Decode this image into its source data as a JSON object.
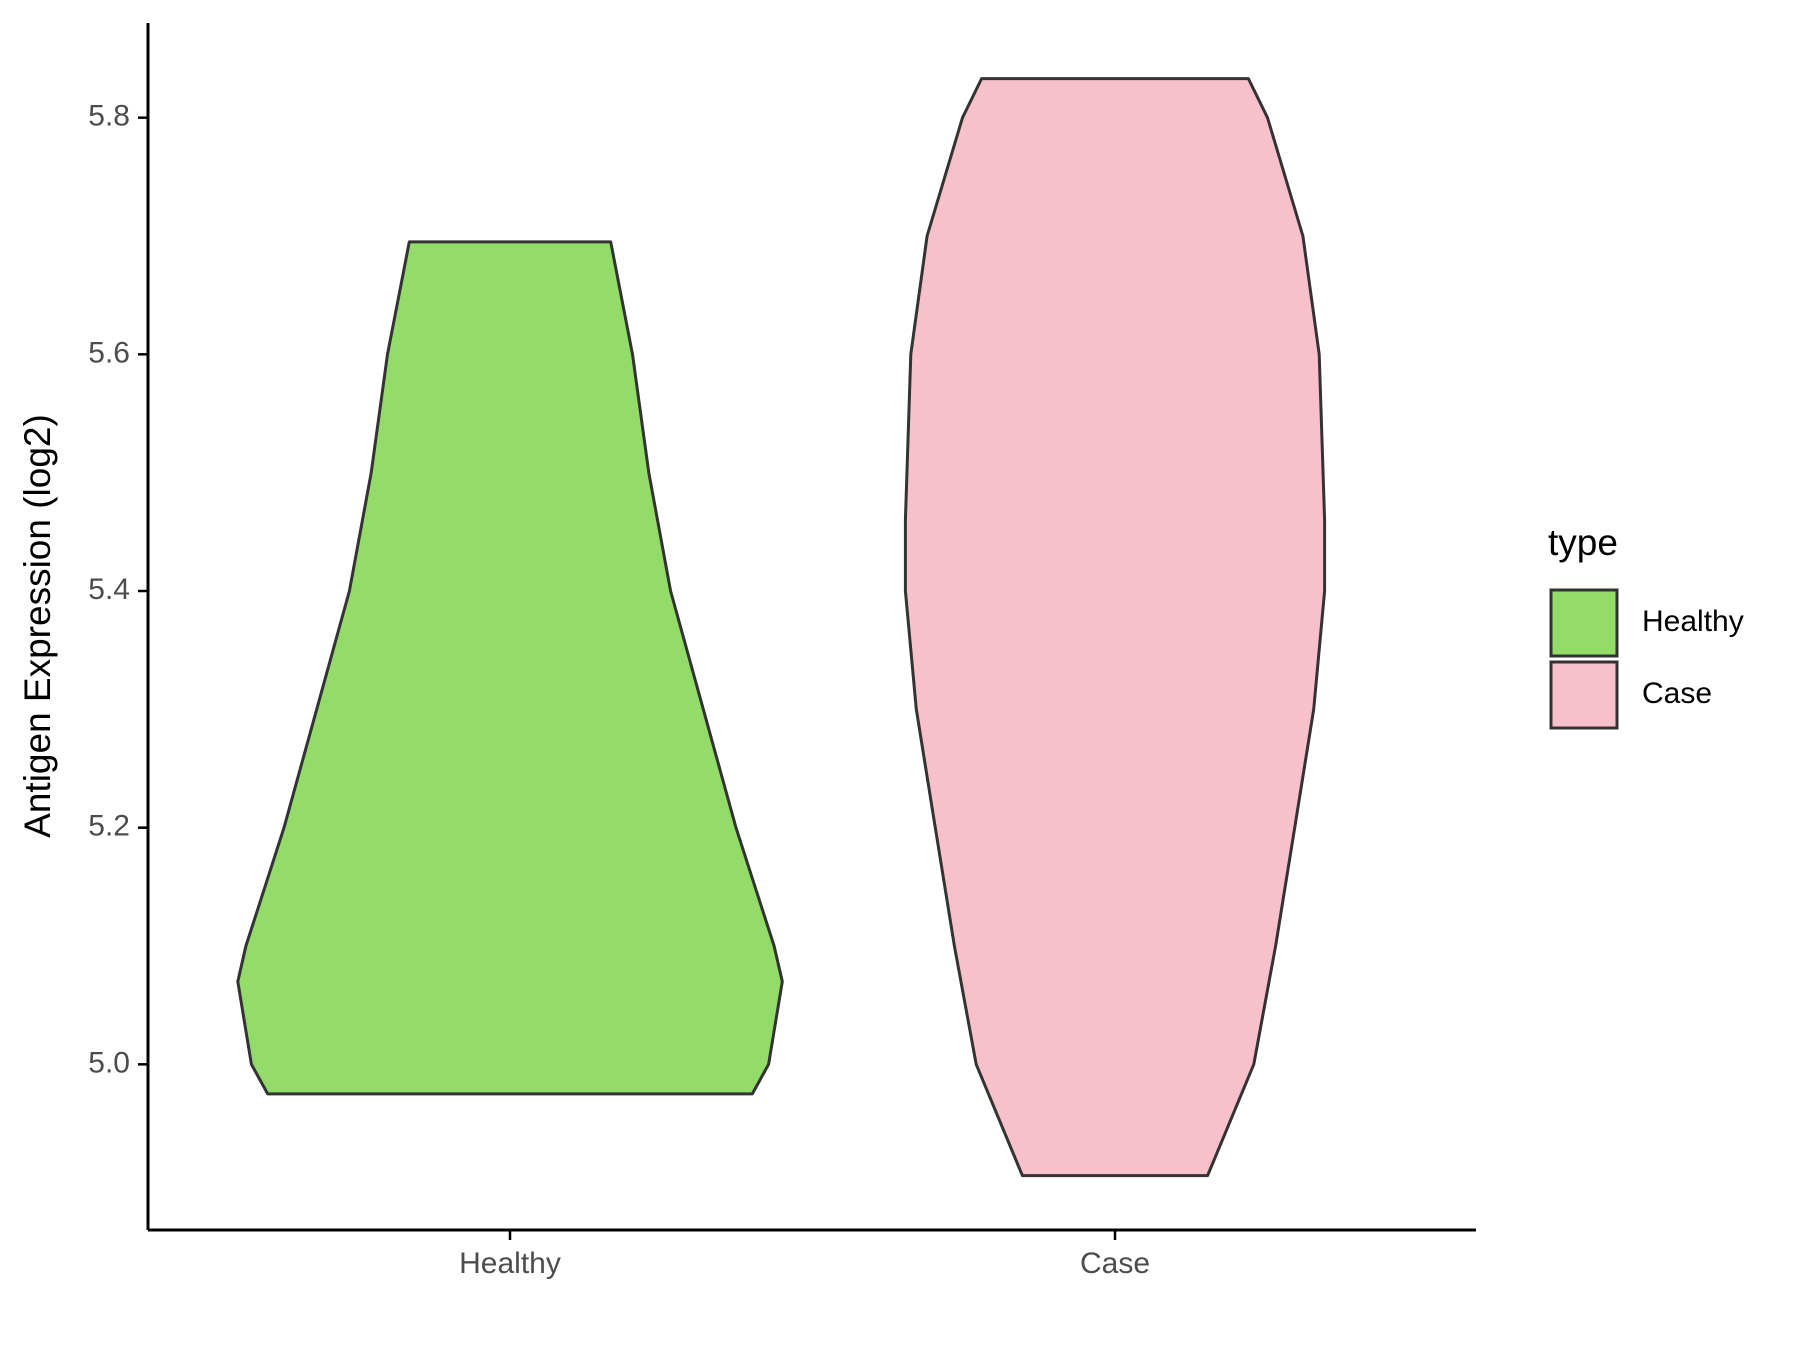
{
  "chart_data": {
    "type": "violin",
    "y_label": "Antigen Expression (log2)",
    "categories": [
      "Healthy",
      "Case"
    ],
    "legend_title": "type",
    "legend": "right",
    "series": [
      {
        "name": "Healthy",
        "color": "#93dc6a",
        "y": [
          5.695,
          5.6,
          5.5,
          5.4,
          5.3,
          5.2,
          5.1,
          5.07,
          5.0,
          4.975
        ],
        "width": [
          0.37,
          0.45,
          0.51,
          0.59,
          0.71,
          0.83,
          0.97,
          1,
          0.95,
          0.89
        ]
      },
      {
        "name": "Case",
        "color": "#f8c0cb",
        "y": [
          5.833,
          5.8,
          5.7,
          5.6,
          5.46,
          5.4,
          5.3,
          5.2,
          5.1,
          5.0,
          4.906
        ],
        "width": [
          0.49,
          0.56,
          0.69,
          0.75,
          0.77,
          0.77,
          0.73,
          0.66,
          0.59,
          0.51,
          0.34
        ]
      }
    ],
    "ylim": [
      4.86,
      5.88
    ],
    "yticks": [
      {
        "value": 5.0,
        "label": "5.0"
      },
      5.2,
      5.4,
      5.6,
      5.8
    ]
  }
}
